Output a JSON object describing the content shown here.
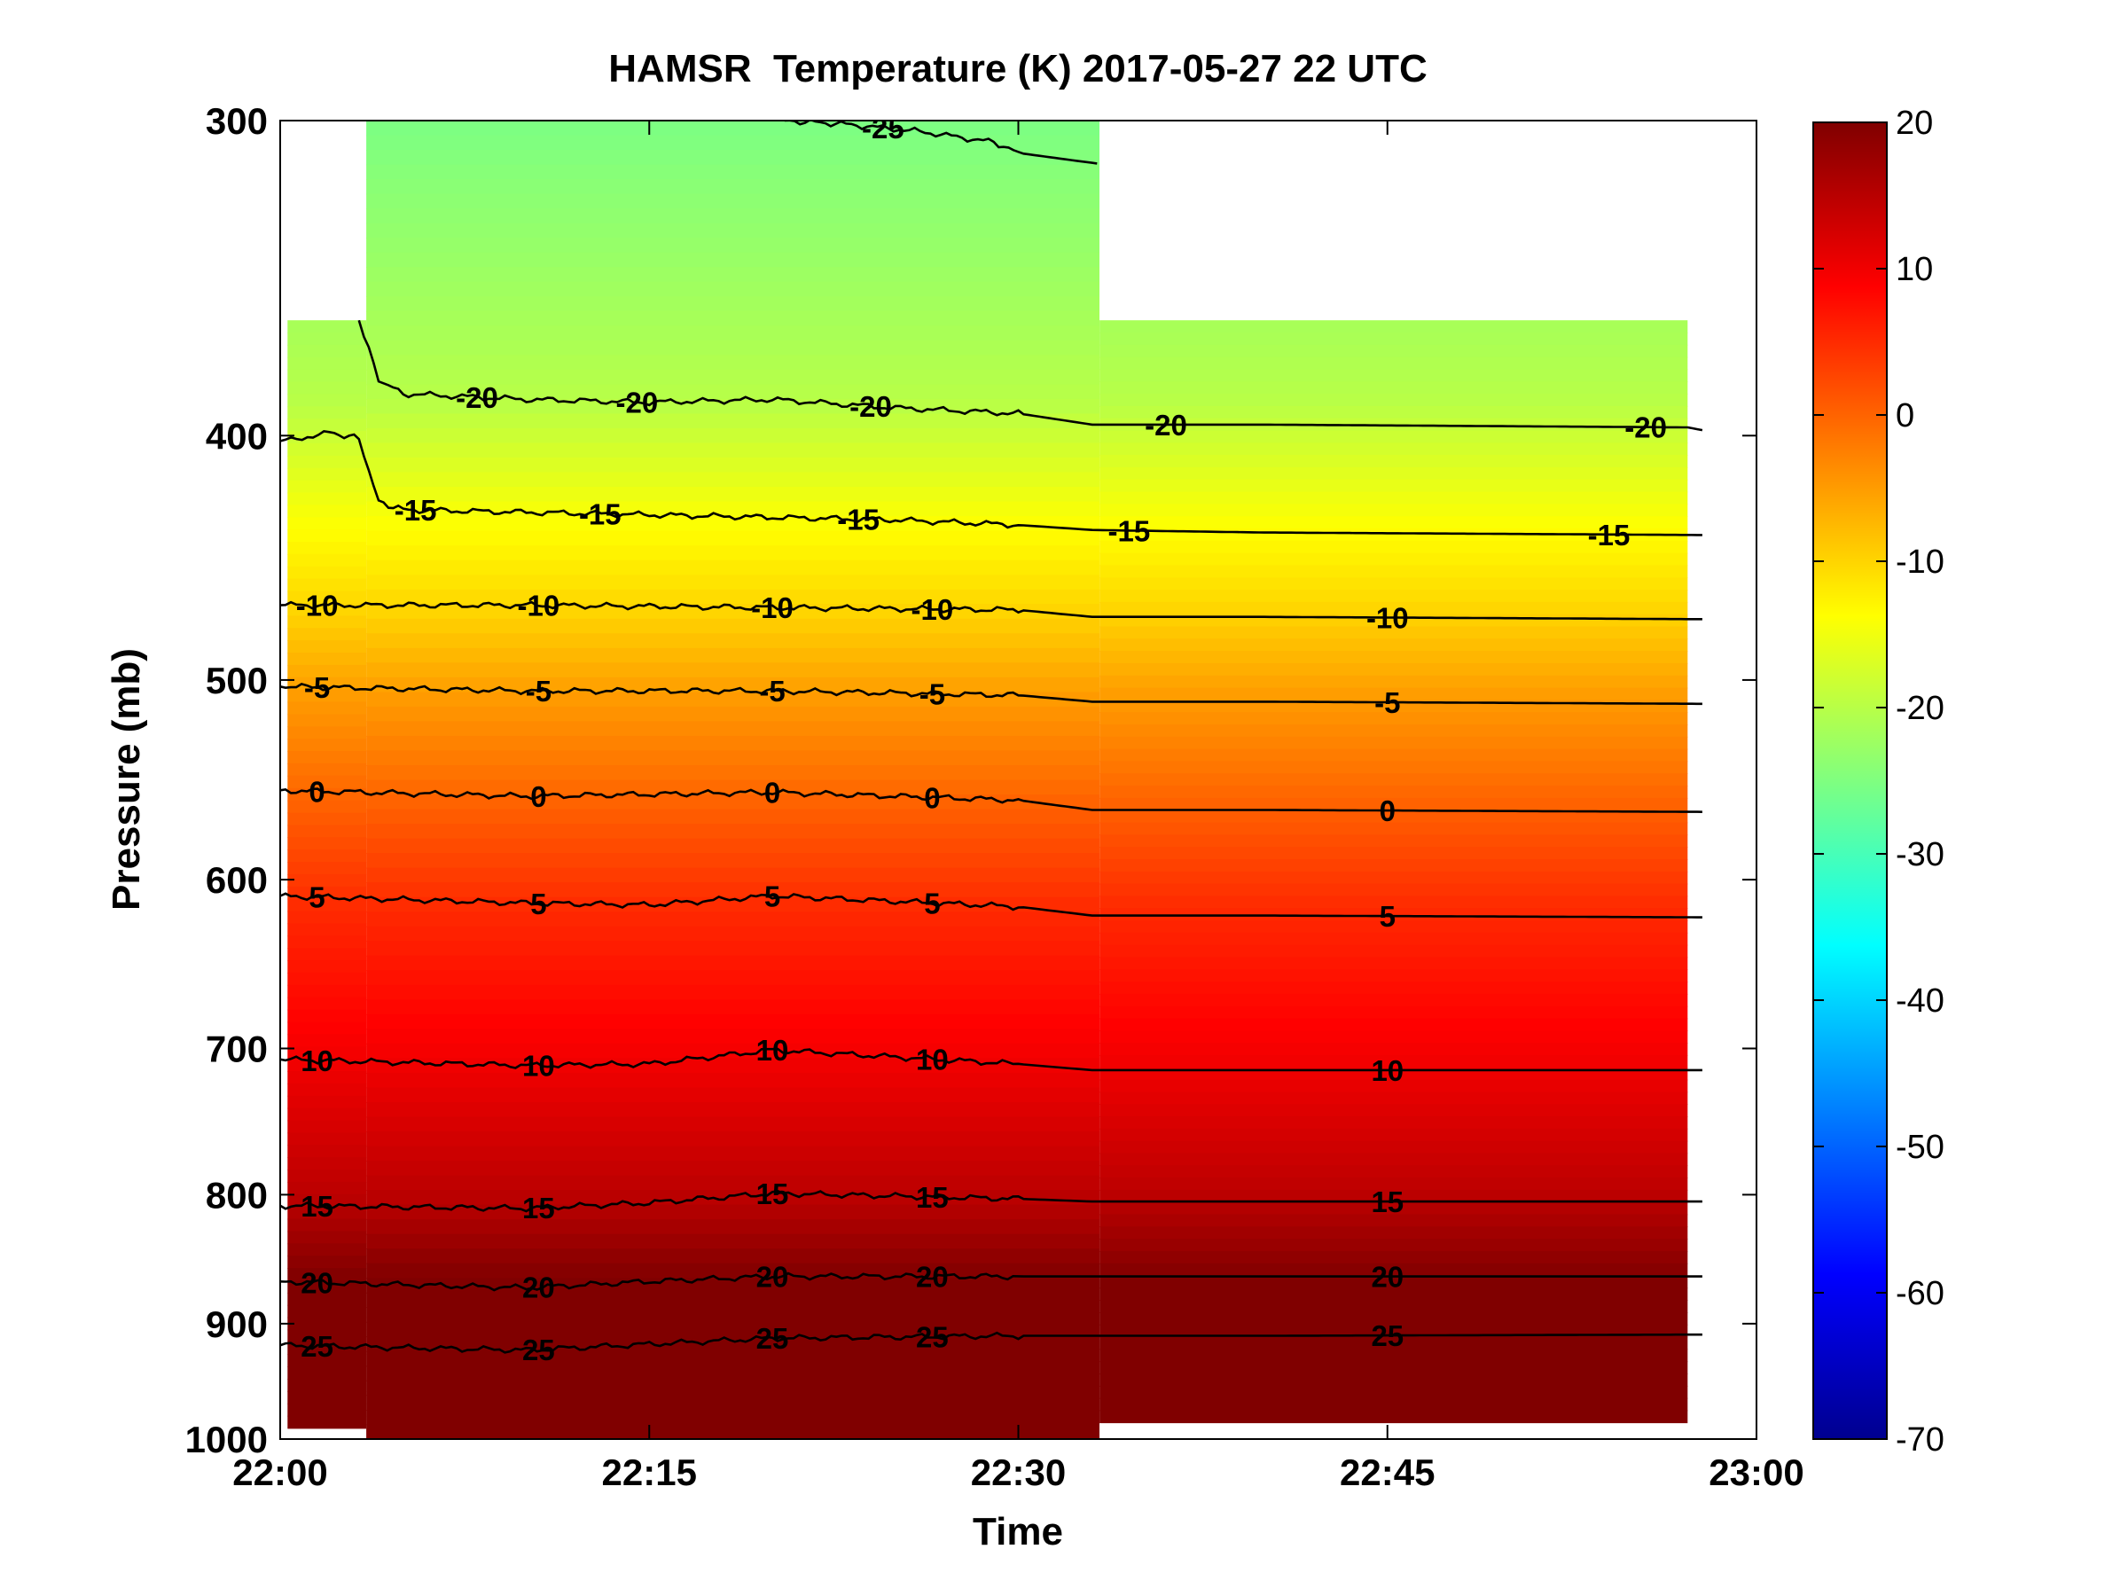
{
  "chart_data": {
    "type": "heatmap",
    "title": "HAMSR  Temperature (K) 2017-05-27 22 UTC",
    "xlabel": "Time",
    "ylabel": "Pressure (mb)",
    "x_ticks": [
      "22:00",
      "22:15",
      "22:30",
      "22:45",
      "23:00"
    ],
    "x_tick_minutes": [
      0,
      15,
      30,
      45,
      60
    ],
    "xlim_minutes": [
      0,
      60
    ],
    "y_ticks": [
      300,
      400,
      500,
      600,
      700,
      800,
      900,
      1000
    ],
    "ylim": [
      300,
      1000
    ],
    "y_scale": "log",
    "y_reversed": true,
    "colorbar": {
      "colormap": "jet",
      "ticks": [
        20,
        10,
        0,
        -10,
        -20,
        -30,
        -40,
        -50,
        -60,
        -70
      ],
      "range": [
        -70,
        20
      ]
    },
    "data_coverage": [
      {
        "start_minute": 0.3,
        "end_minute": 3.5,
        "top_pressure": 360,
        "bottom_pressure": 990
      },
      {
        "start_minute": 3.5,
        "end_minute": 33.3,
        "top_pressure": 300,
        "bottom_pressure": 1000
      },
      {
        "start_minute": 33.3,
        "end_minute": 57.2,
        "top_pressure": 360,
        "bottom_pressure": 985
      }
    ],
    "contours": [
      {
        "level": -25,
        "labels": [
          "-25"
        ],
        "points": [
          [
            20.5,
            300
          ],
          [
            23,
            301
          ],
          [
            26,
            303
          ],
          [
            29,
            306
          ],
          [
            30,
            309
          ],
          [
            33.2,
            312
          ]
        ]
      },
      {
        "level": -20,
        "labels": [
          "-20",
          "-20",
          "-20",
          "-20",
          "-20"
        ],
        "points": [
          [
            3.2,
            360
          ],
          [
            4,
            380
          ],
          [
            5,
            385
          ],
          [
            10,
            387
          ],
          [
            15,
            388
          ],
          [
            20,
            387
          ],
          [
            25,
            390
          ],
          [
            30,
            392
          ],
          [
            33,
            396
          ],
          [
            40,
            396
          ],
          [
            57.2,
            397
          ],
          [
            57.8,
            398
          ]
        ]
      },
      {
        "level": -15,
        "labels": [
          "-15",
          "-15",
          "-15",
          "-15",
          "-15"
        ],
        "points": [
          [
            0,
            402
          ],
          [
            2,
            399
          ],
          [
            3.2,
            401
          ],
          [
            4,
            425
          ],
          [
            5,
            428
          ],
          [
            10,
            429
          ],
          [
            15,
            430
          ],
          [
            20,
            431
          ],
          [
            25,
            432
          ],
          [
            30,
            434
          ],
          [
            33,
            436
          ],
          [
            40,
            437
          ],
          [
            57.8,
            438
          ]
        ]
      },
      {
        "level": -10,
        "labels": [
          "-10",
          "-10",
          "-10",
          "-10",
          "-10"
        ],
        "points": [
          [
            0,
            467
          ],
          [
            10,
            467
          ],
          [
            20,
            468
          ],
          [
            30,
            469
          ],
          [
            33,
            472
          ],
          [
            40,
            472
          ],
          [
            57.8,
            473
          ]
        ]
      },
      {
        "level": -5,
        "labels": [
          "-5",
          "-5",
          "-5",
          "-5",
          "-5"
        ],
        "points": [
          [
            0,
            503
          ],
          [
            10,
            505
          ],
          [
            20,
            505
          ],
          [
            30,
            507
          ],
          [
            33,
            510
          ],
          [
            40,
            510
          ],
          [
            57.8,
            511
          ]
        ]
      },
      {
        "level": 0,
        "labels": [
          "0",
          "0",
          "0",
          "0",
          "0"
        ],
        "points": [
          [
            0,
            553
          ],
          [
            10,
            556
          ],
          [
            20,
            554
          ],
          [
            30,
            558
          ],
          [
            33,
            563
          ],
          [
            40,
            563
          ],
          [
            57.8,
            564
          ]
        ]
      },
      {
        "level": 5,
        "labels": [
          "5",
          "5",
          "5",
          "5",
          "5"
        ],
        "points": [
          [
            0,
            609
          ],
          [
            10,
            613
          ],
          [
            15,
            614
          ],
          [
            20,
            609
          ],
          [
            30,
            615
          ],
          [
            33,
            620
          ],
          [
            40,
            620
          ],
          [
            57.8,
            621
          ]
        ]
      },
      {
        "level": 10,
        "labels": [
          "10",
          "10",
          "10",
          "10",
          "10"
        ],
        "points": [
          [
            0,
            707
          ],
          [
            10,
            711
          ],
          [
            15,
            710
          ],
          [
            20,
            701
          ],
          [
            30,
            710
          ],
          [
            33,
            714
          ],
          [
            40,
            714
          ],
          [
            57.8,
            714
          ]
        ]
      },
      {
        "level": 15,
        "labels": [
          "15",
          "15",
          "15",
          "15",
          "15"
        ],
        "points": [
          [
            0,
            808
          ],
          [
            10,
            810
          ],
          [
            15,
            806
          ],
          [
            20,
            799
          ],
          [
            30,
            803
          ],
          [
            33,
            805
          ],
          [
            40,
            805
          ],
          [
            57.8,
            805
          ]
        ]
      },
      {
        "level": 20,
        "labels": [
          "20",
          "20",
          "20",
          "20",
          "20"
        ],
        "points": [
          [
            0,
            866
          ],
          [
            10,
            871
          ],
          [
            15,
            866
          ],
          [
            20,
            862
          ],
          [
            30,
            862
          ],
          [
            33,
            862
          ],
          [
            40,
            862
          ],
          [
            57.8,
            862
          ]
        ]
      },
      {
        "level": 25,
        "labels": [
          "25",
          "25",
          "25",
          "25",
          "25"
        ],
        "points": [
          [
            0,
            918
          ],
          [
            10,
            922
          ],
          [
            15,
            917
          ],
          [
            20,
            912
          ],
          [
            30,
            910
          ],
          [
            33,
            910
          ],
          [
            40,
            910
          ],
          [
            57.8,
            909
          ]
        ]
      }
    ]
  }
}
